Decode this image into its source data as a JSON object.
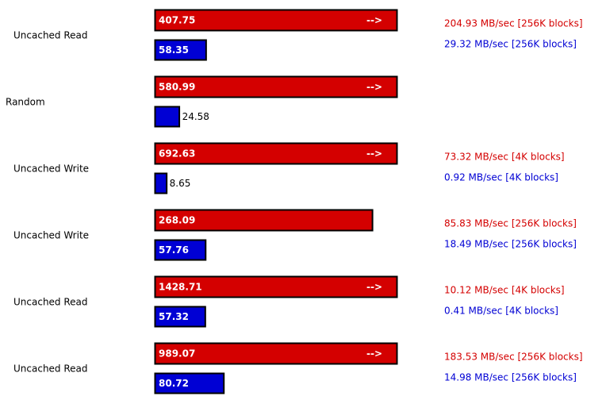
{
  "chart_data": {
    "type": "bar",
    "overflow_marker": "-->",
    "categories": [
      "Uncached Read",
      "Random",
      "Uncached Write",
      "Uncached Write",
      "Uncached Read",
      "Uncached Read"
    ],
    "series": [
      {
        "color": "#d40000",
        "values": [
          407.75,
          580.99,
          692.63,
          268.09,
          1428.71,
          989.07
        ],
        "rate_labels": [
          "204.93 MB/sec [256K blocks]",
          null,
          "73.32 MB/sec [4K blocks]",
          "85.83 MB/sec [256K blocks]",
          "10.12 MB/sec [4K blocks]",
          "183.53 MB/sec [256K blocks]"
        ]
      },
      {
        "color": "#0000d4",
        "values": [
          58.35,
          24.58,
          8.65,
          57.76,
          57.32,
          80.72
        ],
        "rate_labels": [
          "29.32 MB/sec [256K blocks]",
          null,
          "0.92 MB/sec [4K blocks]",
          "18.49 MB/sec [256K blocks]",
          "0.41 MB/sec [4K blocks]",
          "14.98 MB/sec [256K blocks]"
        ]
      }
    ]
  }
}
